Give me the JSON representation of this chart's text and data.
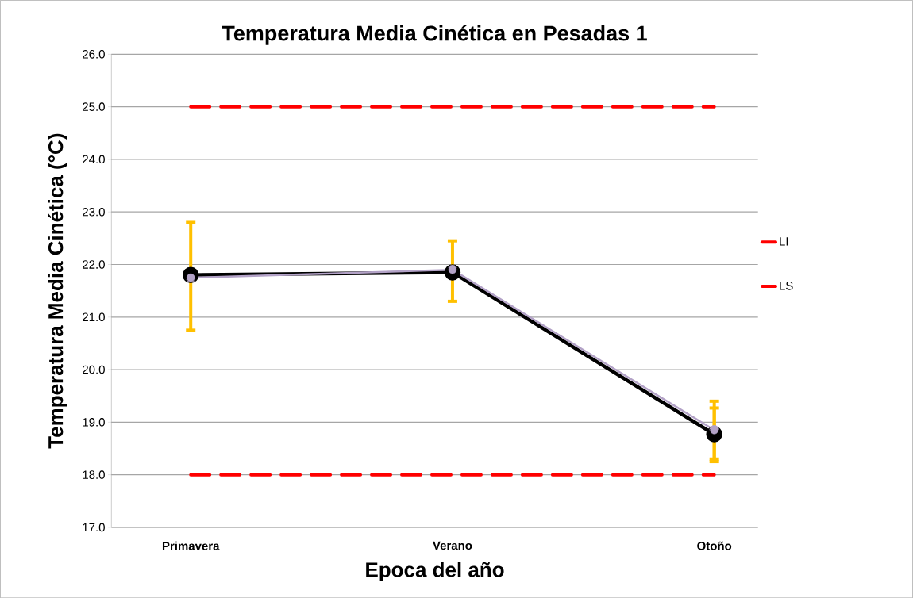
{
  "chart_data": {
    "type": "line",
    "title": "Temperatura Media Cinética en Pesadas 1",
    "xlabel": "Epoca del año",
    "ylabel": "Temperatura Media Cinética (°C)",
    "categories": [
      "Primavera",
      "Verano",
      "Otoño"
    ],
    "series": [
      {
        "color": "#000000",
        "values": [
          21.8,
          21.85,
          18.77
        ],
        "errors": [
          null,
          null,
          [
            18.3,
            19.27
          ]
        ]
      },
      {
        "color": "#b3a2c7",
        "values": [
          21.75,
          21.9,
          18.85
        ],
        "errors": [
          [
            20.75,
            22.8
          ],
          [
            21.3,
            22.45
          ],
          [
            18.25,
            19.4
          ]
        ]
      },
      {
        "name": "LI",
        "color": "#ff0000",
        "values": [
          18,
          18,
          18
        ],
        "marker": "none",
        "line_style": "dashed"
      },
      {
        "name": "LS",
        "color": "#ff0000",
        "values": [
          25,
          25,
          25
        ],
        "marker": "none",
        "line_style": "dashed"
      }
    ],
    "ylim": [
      17,
      26
    ],
    "yticks": [
      {
        "value": 17,
        "label": "17.0"
      },
      {
        "value": 18,
        "label": "18.0"
      },
      {
        "value": 19,
        "label": "19.0"
      },
      {
        "value": 20,
        "label": "20.0"
      },
      {
        "value": 21,
        "label": "21.0"
      },
      {
        "value": 22,
        "label": "22.0"
      },
      {
        "value": 23,
        "label": "23.0"
      },
      {
        "value": 24,
        "label": "24.0"
      },
      {
        "value": 25,
        "label": "25.0"
      },
      {
        "value": 26,
        "label": "26.0"
      }
    ],
    "grid": "y",
    "legend": "right",
    "marker": "circle"
  }
}
